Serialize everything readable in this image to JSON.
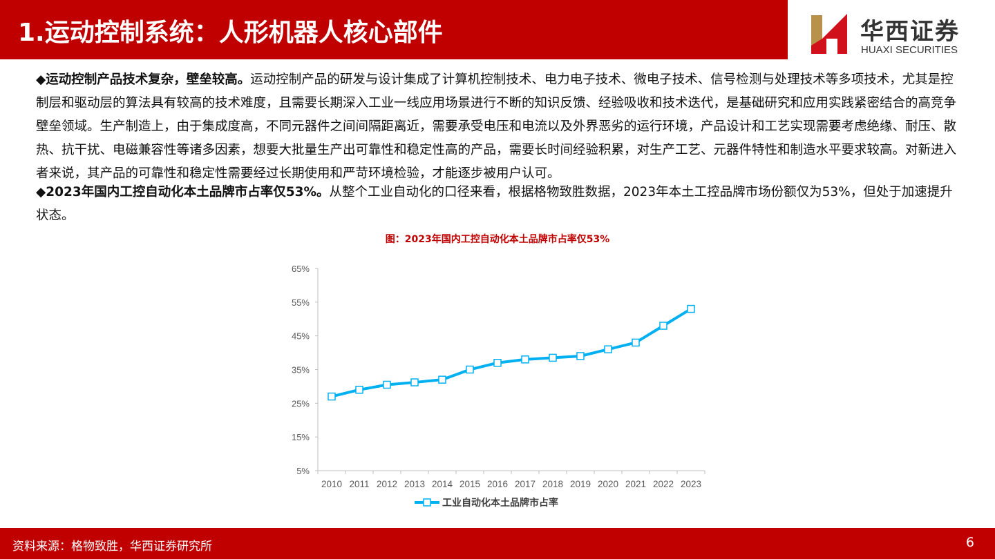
{
  "header": {
    "title": "1.运动控制系统：人形机器人核心部件",
    "logo_cn": "华西证券",
    "logo_en": "HUAXI SECURITIES"
  },
  "body": {
    "p1_bold": "◆运动控制产品技术复杂，壁垒较高。",
    "p1_text": "运动控制产品的研发与设计集成了计算机控制技术、电力电子技术、微电子技术、信号检测与处理技术等多项技术，尤其是控制层和驱动层的算法具有较高的技术难度，且需要长期深入工业一线应用场景进行不断的知识反馈、经验吸收和技术迭代，是基础研究和应用实践紧密结合的高竞争壁垒领域。生产制造上，由于集成度高，不同元器件之间间隔距离近，需要承受电压和电流以及外界恶劣的运行环境，产品设计和工艺实现需要考虑绝缘、耐压、散热、抗干扰、电磁兼容性等诸多因素，想要大批量生产出可靠性和稳定性高的产品，需要长时间经验积累，对生产工艺、元器件特性和制造水平要求较高。对新进入者来说，其产品的可靠性和稳定性需要经过长期使用和严苛环境检验，才能逐步被用户认可。",
    "p2_bold": "◆2023年国内工控自动化本土品牌市占率仅53%。",
    "p2_text": "从整个工业自动化的口径来看，根据格物致胜数据，2023年本土工控品牌市场份额仅为53%，但处于加速提升状态。"
  },
  "chart_data": {
    "type": "line",
    "title": "图：2023年国内工控自动化本土品牌市占率仅53%",
    "categories": [
      "2010",
      "2011",
      "2012",
      "2013",
      "2014",
      "2015",
      "2016",
      "2017",
      "2018",
      "2019",
      "2020",
      "2021",
      "2022",
      "2023"
    ],
    "series": [
      {
        "name": "工业自动化本土品牌市占率",
        "values": [
          27,
          29,
          30.5,
          31.2,
          32,
          35,
          37,
          38,
          38.5,
          39,
          41,
          43,
          48,
          53
        ],
        "color": "#00b0f0"
      }
    ],
    "yticks": [
      "5%",
      "15%",
      "25%",
      "35%",
      "45%",
      "55%",
      "65%"
    ],
    "ylim": [
      5,
      65
    ],
    "grid": false,
    "legend": "bottom",
    "marker": "square"
  },
  "footer": {
    "source": "资料来源：格物致胜，华西证券研究所",
    "page": "6"
  }
}
